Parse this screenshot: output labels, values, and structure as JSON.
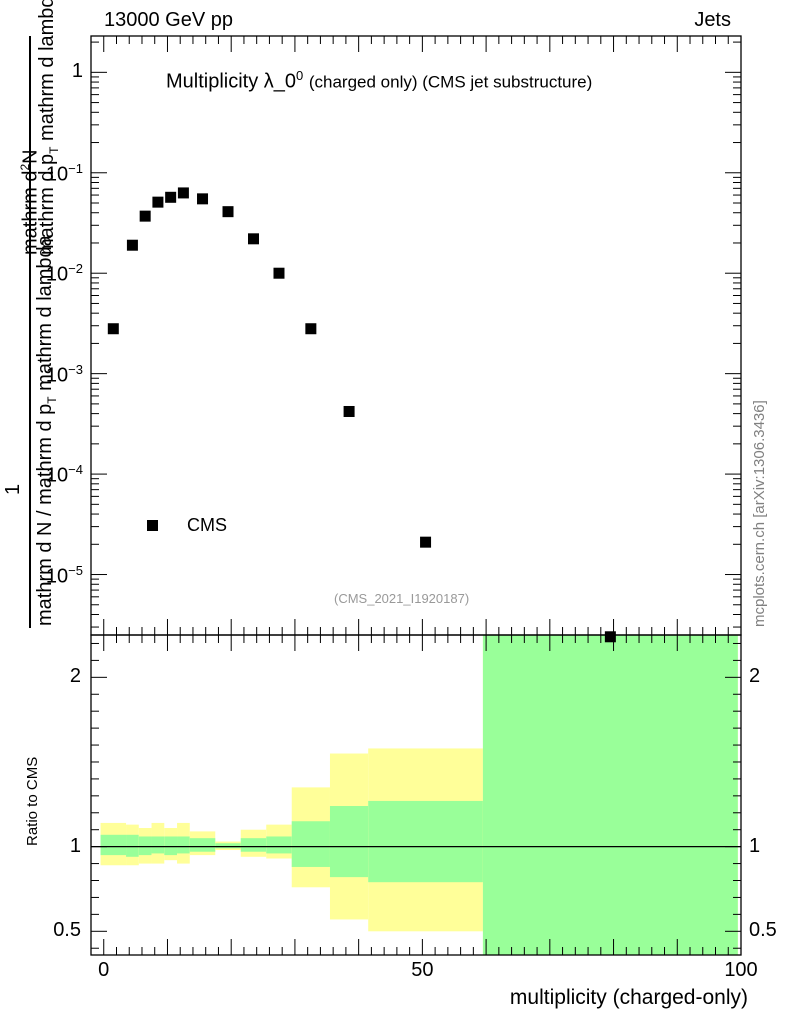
{
  "header": {
    "left": "13000 GeV pp",
    "right": "Jets"
  },
  "watermark": "mcplots.cern.ch [arXiv:1306.3436]",
  "chart_data": [
    {
      "type": "scatter",
      "title": "Multiplicity λ_0",
      "title_superscript": "0",
      "title_suffix": "(charged only) (CMS jet substructure)",
      "analysis_label": "(CMS_2021_I1920187)",
      "ylabel_upper": "1",
      "ylabel_numerator_1": "mathrm d",
      "ylabel_numerator_2": "2",
      "ylabel_numerator_3": "N",
      "ylabel_numerator_4": "mathrm d p",
      "ylabel_numerator_5": "T",
      "ylabel_numerator_6": " mathrm d lambda",
      "ylabel_denominator_1": "mathrm d N / mathrm d p",
      "ylabel_denominator_2": "T",
      "ylabel_denominator_3": " mathrm d lambda",
      "yscale": "log",
      "ylim": [
        2.5e-06,
        2.3
      ],
      "xlim": [
        -2,
        100
      ],
      "legend": {
        "label": "CMS",
        "position": "bottom-left"
      },
      "y_tick_labels": [
        {
          "value": 1,
          "label": "1",
          "exp": ""
        },
        {
          "value": 0.1,
          "label": "10",
          "exp": "−1"
        },
        {
          "value": 0.01,
          "label": "10",
          "exp": "−2"
        },
        {
          "value": 0.001,
          "label": "10",
          "exp": "−3"
        },
        {
          "value": 0.0001,
          "label": "10",
          "exp": "−4"
        },
        {
          "value": 1e-05,
          "label": "10",
          "exp": "−5"
        }
      ],
      "series": [
        {
          "name": "CMS",
          "color": "#000000",
          "x": [
            1.5,
            4.5,
            6.5,
            8.5,
            10.5,
            12.5,
            15.5,
            19.5,
            23.5,
            27.5,
            32.5,
            38.5,
            50.5,
            79.5
          ],
          "y": [
            0.0028,
            0.019,
            0.037,
            0.051,
            0.057,
            0.063,
            0.055,
            0.041,
            0.022,
            0.01,
            0.0028,
            0.00042,
            2.1e-05,
            2.4e-06
          ]
        }
      ]
    },
    {
      "type": "area",
      "ylabel": "Ratio to CMS",
      "xlabel": "multiplicity (charged-only)",
      "xlim": [
        -2,
        100
      ],
      "ylim": [
        0.36,
        2.25
      ],
      "x_tick_labels": [
        {
          "value": 0,
          "label": "0"
        },
        {
          "value": 50,
          "label": "50"
        },
        {
          "value": 100,
          "label": "100"
        }
      ],
      "y_tick_labels": [
        {
          "value": 2,
          "label": "2"
        },
        {
          "value": 1,
          "label": "1"
        },
        {
          "value": 0.5,
          "label": "0.5"
        }
      ],
      "reference_line": 1,
      "bands": {
        "bin_edges": [
          -0.5,
          3.5,
          5.5,
          7.5,
          9.5,
          11.5,
          13.5,
          17.5,
          21.5,
          25.5,
          29.5,
          35.5,
          41.5,
          59.5,
          99.5
        ],
        "total_low": [
          0.89,
          0.89,
          0.9,
          0.9,
          0.92,
          0.9,
          0.95,
          0.98,
          0.94,
          0.93,
          0.76,
          0.57,
          0.5,
          0.36
        ],
        "total_high": [
          1.14,
          1.13,
          1.11,
          1.14,
          1.11,
          1.14,
          1.09,
          1.03,
          1.1,
          1.13,
          1.35,
          1.55,
          1.58,
          2.25
        ],
        "stat_low": [
          0.95,
          0.94,
          0.95,
          0.96,
          0.95,
          0.96,
          0.97,
          0.99,
          0.97,
          0.96,
          0.88,
          0.82,
          0.79,
          0.36
        ],
        "stat_high": [
          1.07,
          1.07,
          1.06,
          1.06,
          1.06,
          1.06,
          1.05,
          1.02,
          1.05,
          1.06,
          1.15,
          1.24,
          1.27,
          2.25
        ],
        "total_color": "#ffff99",
        "stat_color": "#99ff99"
      }
    }
  ]
}
